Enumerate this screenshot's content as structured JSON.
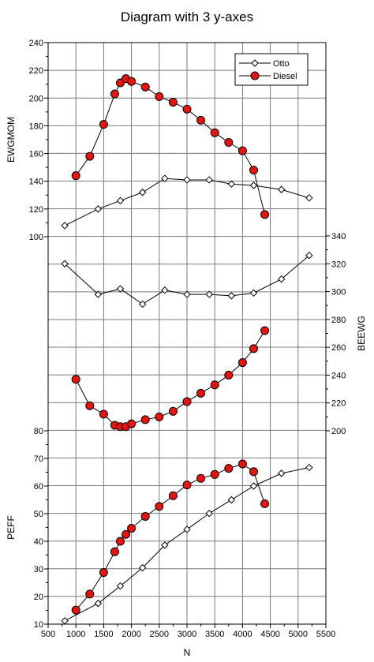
{
  "chart_data": {
    "type": "line",
    "title": "Diagram with 3 y-axes",
    "xlabel": "N",
    "xlim": [
      500,
      5500
    ],
    "x_ticks": [
      500,
      1000,
      1500,
      2000,
      2500,
      3000,
      3500,
      4000,
      4500,
      5000,
      5500
    ],
    "grid": true,
    "legend_position": "top-right",
    "axes": [
      {
        "ylabel": "EWGMOM",
        "side": "left",
        "ylim": [
          100,
          240
        ],
        "y_ticks": [
          100,
          120,
          140,
          160,
          180,
          200,
          220,
          240
        ],
        "series": [
          {
            "name": "Otto",
            "x": [
              800,
              1400,
              1800,
              2200,
              2600,
              3000,
              3400,
              3800,
              4200,
              4700,
              5200
            ],
            "values": [
              108,
              120,
              126,
              132,
              142,
              141,
              141,
              138,
              137,
              134,
              128
            ]
          },
          {
            "name": "Diesel",
            "x": [
              1000,
              1250,
              1500,
              1700,
              1800,
              1900,
              2000,
              2250,
              2500,
              2750,
              3000,
              3250,
              3500,
              3750,
              4000,
              4200,
              4400
            ],
            "values": [
              144,
              158,
              181,
              203,
              211,
              214,
              212,
              208,
              201,
              197,
              192,
              184,
              175,
              168,
              162,
              148,
              116
            ]
          }
        ]
      },
      {
        "ylabel": "BEEWG",
        "side": "right",
        "ylim": [
          200,
          340
        ],
        "y_ticks": [
          200,
          220,
          240,
          260,
          280,
          300,
          320,
          340
        ],
        "series": [
          {
            "name": "Otto",
            "x": [
              800,
              1400,
              1800,
              2200,
              2600,
              3000,
              3400,
              3800,
              4200,
              4700,
              5200
            ],
            "values": [
              320,
              298,
              302,
              291,
              301,
              298,
              298,
              297,
              299,
              309,
              326
            ]
          },
          {
            "name": "Diesel",
            "x": [
              1000,
              1250,
              1500,
              1700,
              1800,
              1900,
              2000,
              2250,
              2500,
              2750,
              3000,
              3250,
              3500,
              3750,
              4000,
              4200,
              4400
            ],
            "values": [
              237,
              218,
              212,
              204,
              203,
              203,
              205,
              208,
              210,
              214,
              221,
              227,
              233,
              240,
              249,
              259,
              272
            ]
          }
        ]
      },
      {
        "ylabel": "PEFF",
        "side": "left",
        "ylim": [
          10,
          80
        ],
        "y_ticks": [
          10,
          20,
          30,
          40,
          50,
          60,
          70,
          80
        ],
        "series": [
          {
            "name": "Otto",
            "x": [
              800,
              1400,
              1800,
              2200,
              2600,
              3000,
              3400,
              3800,
              4200,
              4700,
              5200
            ],
            "values": [
              11.2,
              17.5,
              23.8,
              30.4,
              38.6,
              44.3,
              50.1,
              55.0,
              60.0,
              64.6,
              66.7
            ]
          },
          {
            "name": "Diesel",
            "x": [
              1000,
              1250,
              1500,
              1700,
              1800,
              1900,
              2000,
              2250,
              2500,
              2750,
              3000,
              3250,
              3500,
              3750,
              4000,
              4200,
              4400
            ],
            "values": [
              15.1,
              20.9,
              28.7,
              36.2,
              40.0,
              42.5,
              44.7,
              49.0,
              52.6,
              56.5,
              60.4,
              62.8,
              64.2,
              66.4,
              68.0,
              65.2,
              53.6
            ]
          }
        ]
      }
    ],
    "legend": [
      {
        "name": "Otto",
        "marker": "diamond-open",
        "color": "#000000"
      },
      {
        "name": "Diesel",
        "marker": "circle-filled",
        "color": "#e8130f"
      }
    ]
  }
}
